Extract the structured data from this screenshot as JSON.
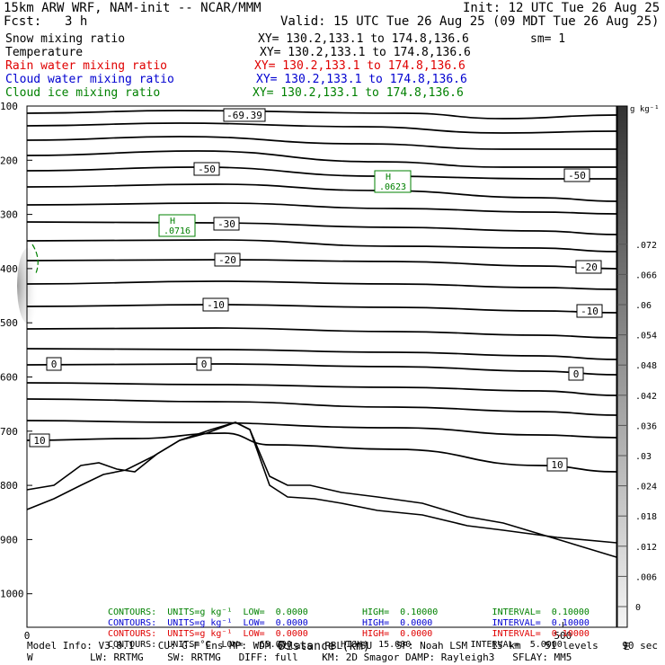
{
  "header": {
    "model": "15km ARW WRF, NAM-init -- NCAR/MMM",
    "init": "Init: 12 UTC Tue 26 Aug 25",
    "fcst_label": "Fcst:",
    "fcst_value": "3 h",
    "valid": "Valid: 15 UTC Tue 26 Aug 25 (09 MDT Tue 26 Aug 25)",
    "fields": [
      {
        "name": "Snow mixing ratio",
        "xy": "XY= 130.2,133.1 to 174.8,136.6",
        "extra": "sm= 1",
        "color": "#000000"
      },
      {
        "name": "Temperature",
        "xy": "XY= 130.2,133.1 to 174.8,136.6",
        "extra": "",
        "color": "#000000"
      },
      {
        "name": "Rain water mixing ratio",
        "xy": "XY= 130.2,133.1 to 174.8,136.6",
        "extra": "",
        "color": "#e00000"
      },
      {
        "name": "Cloud water mixing ratio",
        "xy": "XY= 130.2,133.1 to 174.8,136.6",
        "extra": "",
        "color": "#0000d0"
      },
      {
        "name": "Cloud ice mixing ratio",
        "xy": "XY= 130.2,133.1 to 174.8,136.6",
        "extra": "",
        "color": "#008000"
      }
    ]
  },
  "chart_data": {
    "type": "contour",
    "xlabel": "Distance (km)",
    "x_ticks": [
      "0",
      "500"
    ],
    "xlim": [
      0,
      550
    ],
    "y_ticks": [
      "100",
      "200",
      "300",
      "400",
      "500",
      "600",
      "700",
      "800",
      "900",
      "1000"
    ],
    "ylim_hpa": [
      1000,
      100
    ],
    "colorbar": {
      "units": "g kg⁻¹",
      "tick_labels": [
        "0",
        ".006",
        ".012",
        ".018",
        ".024",
        ".03",
        ".036",
        ".042",
        ".048",
        ".054",
        ".06",
        ".066",
        ".072"
      ]
    },
    "temperature_contours": {
      "units": "°C",
      "levels": [
        -70,
        -65,
        -60,
        -55,
        -50,
        -45,
        -40,
        -35,
        -30,
        -25,
        -20,
        -15,
        -10,
        -5,
        0,
        5,
        10,
        15
      ],
      "labels": [
        "-69.39",
        "-50",
        "-50",
        "-30",
        "-20",
        "-20",
        "-10",
        "-10",
        "0",
        "0",
        "0",
        "10",
        "10"
      ]
    },
    "maxima": [
      {
        "label": "H",
        "value": ".0716"
      },
      {
        "label": "H",
        "value": ".0623"
      }
    ]
  },
  "contours_info": [
    {
      "prefix": "CONTOURS:",
      "units": "UNITS=g kg⁻¹",
      "low": "LOW=",
      "low_v": "0.0000",
      "high": "HIGH=",
      "high_v": "0.10000",
      "interval": "INTERVAL=",
      "interval_v": "0.10000",
      "color": "#008000"
    },
    {
      "prefix": "CONTOURS:",
      "units": "UNITS=g kg⁻¹",
      "low": "LOW=",
      "low_v": "0.0000",
      "high": "HIGH=",
      "high_v": "0.0000",
      "interval": "INTERVAL=",
      "interval_v": "0.10000",
      "color": "#0000d0"
    },
    {
      "prefix": "CONTOURS:",
      "units": "UNITS=g kg⁻¹",
      "low": "LOW=",
      "low_v": "0.0000",
      "high": "HIGH=",
      "high_v": "0.0000",
      "interval": "INTERVAL=",
      "interval_v": "0.10000",
      "color": "#e00000"
    },
    {
      "prefix": "CONTOURS:",
      "units": "UNITS=°C",
      "low": "LOW=",
      "low_v": "-65.000",
      "high": "HIGH=",
      "high_v": "15.000",
      "interval": "INTERVAL=",
      "interval_v": "5.0000",
      "color": "#000000"
    }
  ],
  "footer": {
    "line1": "Model Info: V3.8.1    CU: G-F Ens MP: WDM 6class  PBL: YSU    SF: Noah LSM    15 km    51 levels    90 sec",
    "line2": "LW: RRTMG    SW: RRTMG   DIFF: full    KM: 2D Smagor DAMP: Rayleigh3   SFLAY: MM5",
    "left_marker": "W",
    "right_marker": "E"
  }
}
